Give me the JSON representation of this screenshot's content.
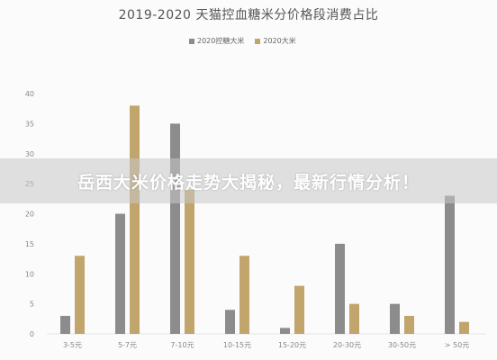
{
  "colors": {
    "series_2020_kongtang": "#8c8c8c",
    "series_2020": "#c2a56d",
    "axis_text": "#888888",
    "gridline": "#e6e6e6"
  },
  "overlay": {
    "text": "岳西大米价格走势大揭秘，最新行情分析！"
  },
  "chart_data": {
    "type": "bar",
    "title": "2019-2020 天猫控血糖米分价格段消费占比",
    "categories": [
      "3-5元",
      "5-7元",
      "7-10元",
      "10-15元",
      "15-20元",
      "20-30元",
      "30-50元",
      "> 50元"
    ],
    "series": [
      {
        "name": "2020控糖大米",
        "values": [
          3,
          20,
          35,
          4,
          1,
          15,
          5,
          23
        ]
      },
      {
        "name": "2020大米",
        "values": [
          13,
          38,
          24,
          13,
          8,
          5,
          3,
          2
        ]
      }
    ],
    "yticks": [
      0,
      5,
      10,
      15,
      20,
      25,
      30,
      35,
      40
    ],
    "ylim": [
      0,
      40
    ],
    "legend_position": "top-center",
    "grid": false
  }
}
